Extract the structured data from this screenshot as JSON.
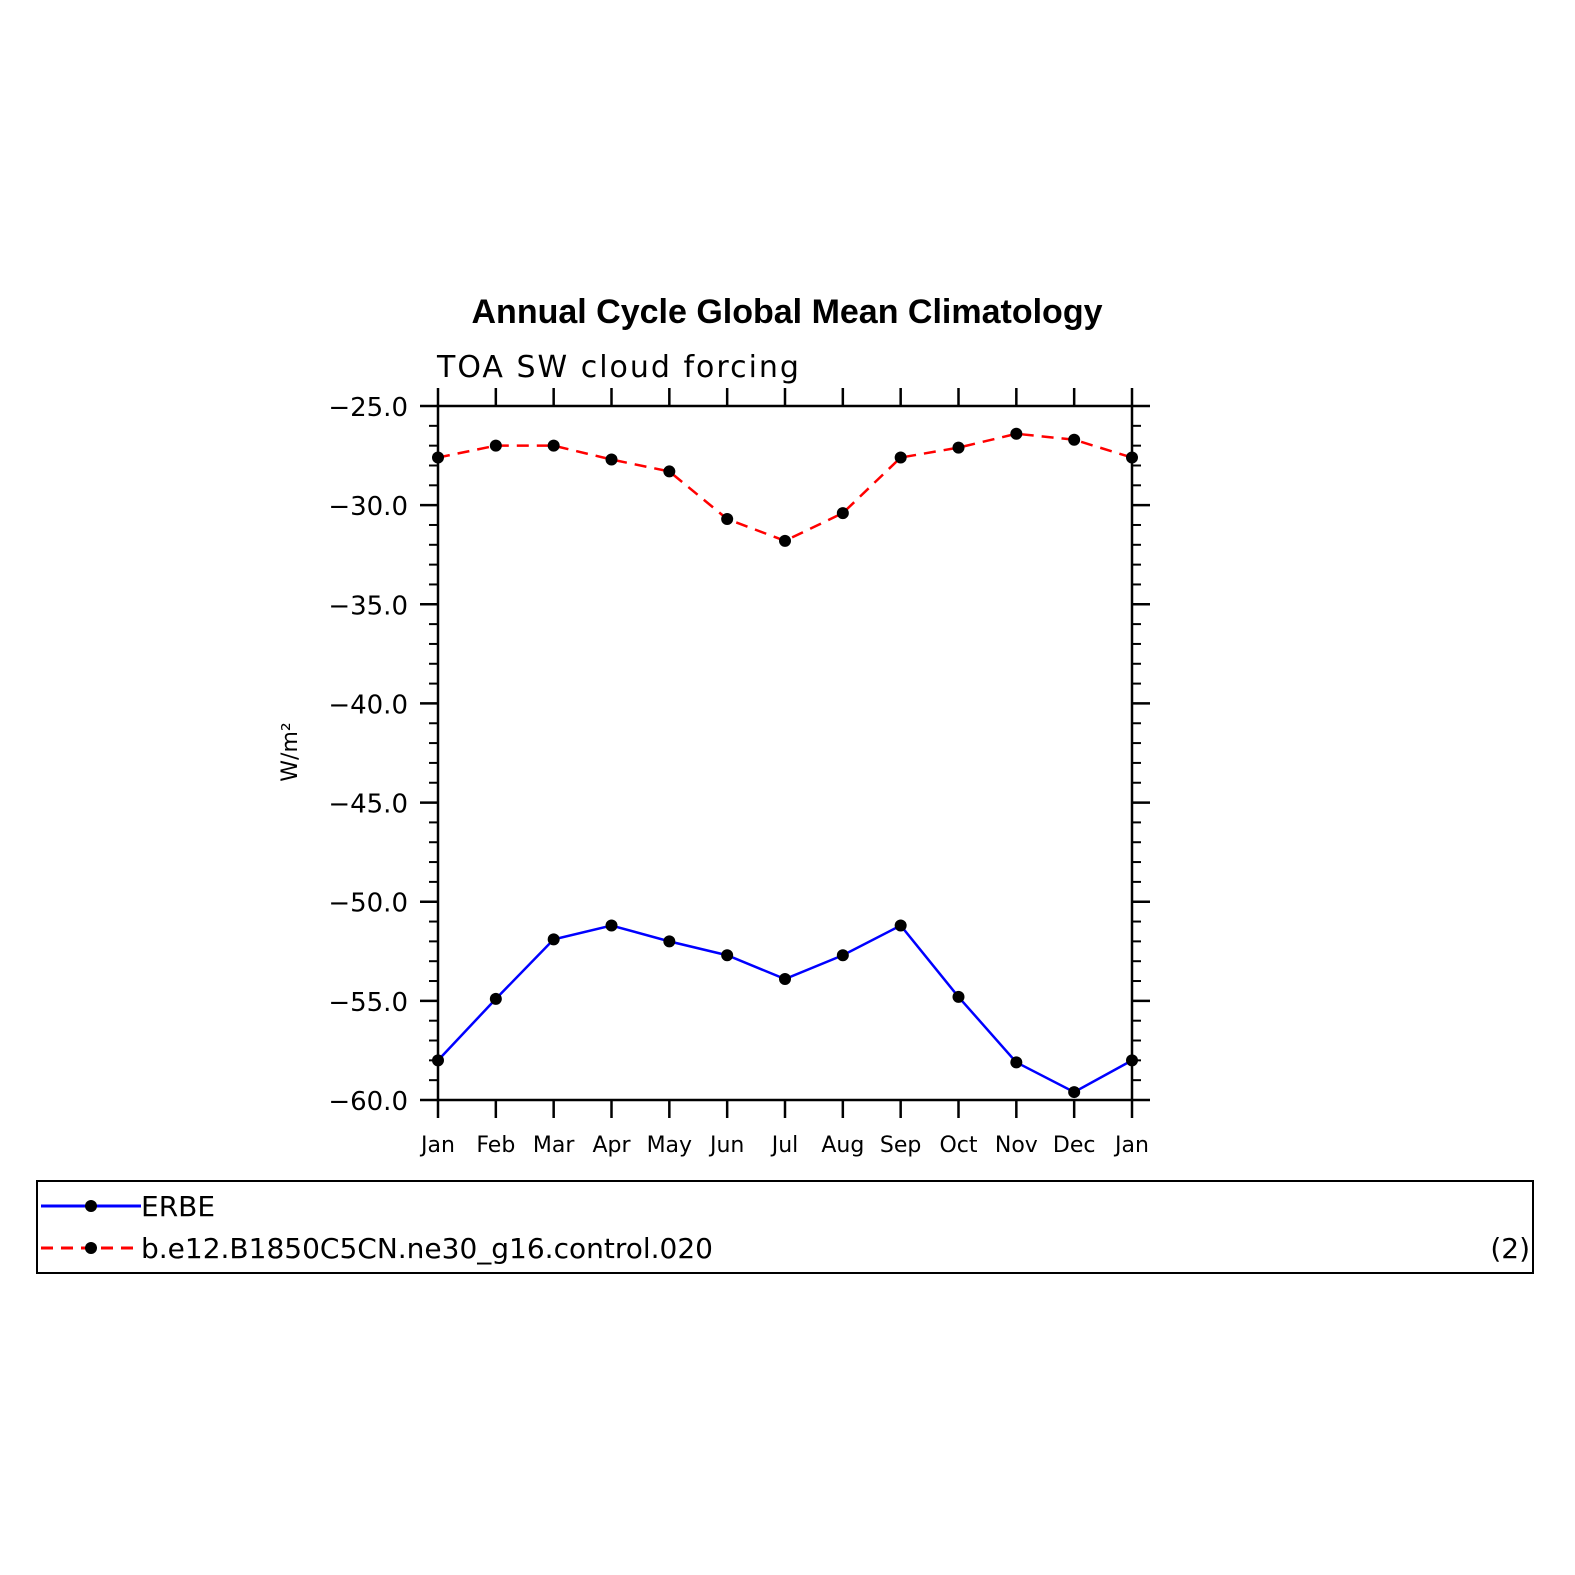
{
  "chart_data": {
    "type": "line",
    "title": "Annual Cycle Global Mean Climatology",
    "subtitle": "TOA SW cloud forcing",
    "ylabel": "W/m²",
    "ylim": [
      -60,
      -25
    ],
    "yticks": [
      -25,
      -30,
      -35,
      -40,
      -45,
      -50,
      -55,
      -60
    ],
    "ytick_labels": [
      "−25.0",
      "−30.0",
      "−35.0",
      "−40.0",
      "−45.0",
      "−50.0",
      "−55.0",
      "−60.0"
    ],
    "categories": [
      "Jan",
      "Feb",
      "Mar",
      "Apr",
      "May",
      "Jun",
      "Jul",
      "Aug",
      "Sep",
      "Oct",
      "Nov",
      "Dec",
      "Jan"
    ],
    "series": [
      {
        "name": "ERBE",
        "color": "#0000ff",
        "dash": "solid",
        "values": [
          -58.0,
          -54.9,
          -51.9,
          -51.2,
          -52.0,
          -52.7,
          -53.9,
          -52.7,
          -51.2,
          -54.8,
          -58.1,
          -59.6,
          -58.0
        ]
      },
      {
        "name": "b.e12.B1850C5CN.ne30_g16.control.020",
        "color": "#ff0000",
        "dash": "dashed",
        "values": [
          -27.6,
          -27.0,
          -27.0,
          -27.7,
          -28.3,
          -30.7,
          -31.8,
          -30.4,
          -27.6,
          -27.1,
          -26.4,
          -26.7,
          -27.6
        ]
      }
    ],
    "legend_note": "(2)",
    "grid": false,
    "legend_position": "bottom"
  }
}
